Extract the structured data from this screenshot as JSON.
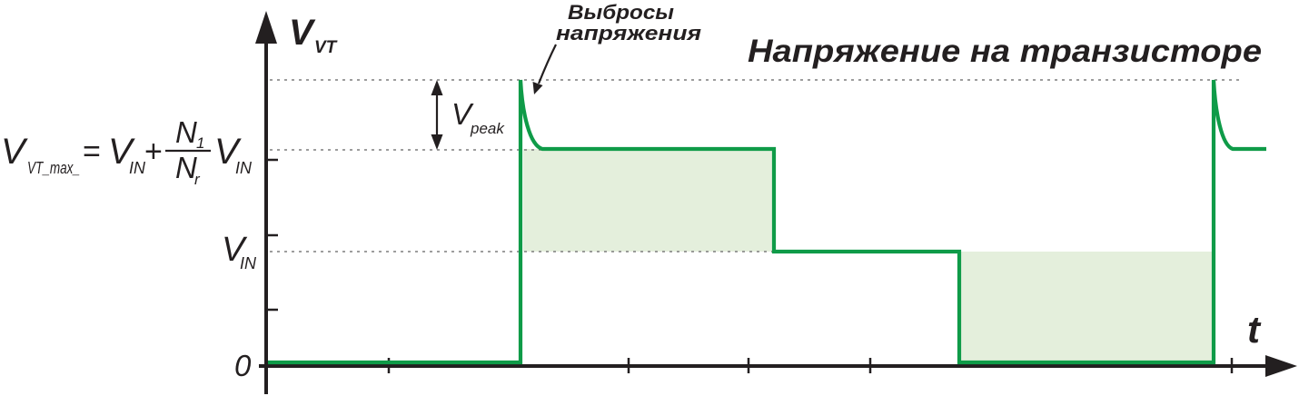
{
  "title": "Напряжение на транзисторе",
  "annotation": {
    "line1": "Выбросы",
    "line2": "напряжения"
  },
  "axes": {
    "y_label": {
      "main": "V",
      "sub": "VT"
    },
    "x_label": "t",
    "origin_label": "0"
  },
  "levels": {
    "v_in": {
      "main": "V",
      "sub": "IN"
    },
    "v_peak": {
      "main": "V",
      "sub": "peak"
    }
  },
  "formula": {
    "lhs": {
      "main": "V",
      "sub": "VT_max_"
    },
    "equals": "=",
    "term1": {
      "main": "V",
      "sub": "IN"
    },
    "plus": "+",
    "numerator": {
      "main": "N",
      "sub": "1"
    },
    "denominator": {
      "main": "N",
      "sub": "r"
    },
    "term2": {
      "main": "V",
      "sub": "IN"
    }
  },
  "colors": {
    "waveform": "#0f9b48",
    "shaded_area": "#e4efdc",
    "axis": "#231f20",
    "guide_lines": "#7d7d7d"
  }
}
